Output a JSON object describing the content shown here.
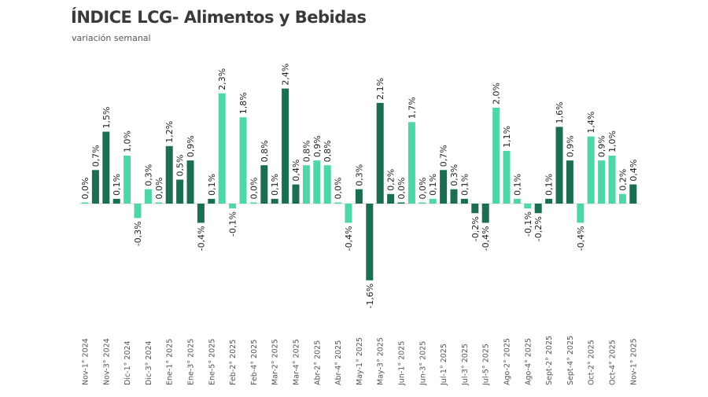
{
  "chart_data": {
    "type": "bar",
    "title": "ÍNDICE LCG- Alimentos y Bebidas",
    "subtitle": "variación semanal",
    "xlabel": "",
    "ylabel": "",
    "ylim": [
      -1.6,
      2.4
    ],
    "grid": false,
    "legend": "none",
    "unit": "%",
    "colors": {
      "dark": "#1b6e52",
      "light": "#4fd6a8"
    },
    "categories": [
      "Nov-1° 2024",
      "",
      "Nov-3° 2024",
      "",
      "Dic-1° 2024",
      "",
      "Dic-3° 2024",
      "",
      "Ene-1° 2025",
      "",
      "Ene-3° 2025",
      "",
      "Ene-5° 2025",
      "",
      "Feb-2° 2025",
      "",
      "Feb-4° 2025",
      "",
      "Mar-2° 2025",
      "",
      "Mar-4° 2025",
      "",
      "Abr-2° 2025",
      "",
      "Abr-4° 2025",
      "",
      "May-1° 2025",
      "",
      "May-3° 2025",
      "",
      "Jun-1° 2025",
      "",
      "Jun-3° 2025",
      "",
      "Jul-1° 2025",
      "",
      "Jul-3° 2025",
      "",
      "Jul-5° 2025",
      "",
      "Ago-2° 2025",
      "",
      "Ago-4° 2025",
      "",
      "Sept-2° 2025",
      "",
      "Sept-4° 2025",
      "",
      "Oct-2° 2025",
      "",
      "Oct-4° 2025",
      "",
      "Nov-1° 2025"
    ],
    "values": [
      0.0,
      0.7,
      1.5,
      0.1,
      1.0,
      -0.3,
      0.3,
      0.0,
      1.2,
      0.5,
      0.9,
      -0.4,
      0.1,
      2.3,
      -0.1,
      1.8,
      0.0,
      0.8,
      0.1,
      2.4,
      0.4,
      0.8,
      0.9,
      0.8,
      0.0,
      -0.4,
      0.3,
      -1.6,
      2.1,
      0.2,
      0.0,
      1.7,
      0.0,
      0.1,
      0.7,
      0.3,
      0.1,
      -0.2,
      -0.4,
      2.0,
      1.1,
      0.1,
      -0.1,
      -0.2,
      0.1,
      1.6,
      0.9,
      -0.4,
      1.4,
      0.9,
      1.0,
      0.2,
      0.4
    ],
    "data_labels": [
      "0,0%",
      "0,7%",
      "1,5%",
      "0,1%",
      "1,0%",
      "-0,3%",
      "0,3%",
      "0,0%",
      "1,2%",
      "0,5%",
      "0,9%",
      "-0,4%",
      "0,1%",
      "2,3%",
      "-0,1%",
      "1,8%",
      "0,0%",
      "0,8%",
      "0,1%",
      "2,4%",
      "0,4%",
      "0,8%",
      "0,9%",
      "0,8%",
      "0,0%",
      "-0,4%",
      "0,3%",
      "-1,6%",
      "2,1%",
      "0,2%",
      "0,0%",
      "1,7%",
      "0,0%",
      "0,1%",
      "0,7%",
      "0,3%",
      "0,1%",
      "-0,2%",
      "-0,4%",
      "2,0%",
      "1,1%",
      "0,1%",
      "-0,1%",
      "-0,2%",
      "0,1%",
      "1,6%",
      "0,9%",
      "-0,4%",
      "1,4%",
      "0,9%",
      "1,0%",
      "0,2%",
      "0,4%"
    ],
    "bar_colors": [
      "light",
      "dark",
      "dark",
      "dark",
      "light",
      "light",
      "light",
      "light",
      "dark",
      "dark",
      "dark",
      "dark",
      "dark",
      "light",
      "light",
      "light",
      "light",
      "dark",
      "dark",
      "dark",
      "dark",
      "light",
      "light",
      "light",
      "light",
      "light",
      "dark",
      "dark",
      "dark",
      "dark",
      "dark",
      "light",
      "light",
      "light",
      "dark",
      "dark",
      "dark",
      "dark",
      "dark",
      "light",
      "light",
      "light",
      "light",
      "dark",
      "dark",
      "dark",
      "dark",
      "light",
      "light",
      "light",
      "light",
      "light",
      "dark"
    ]
  }
}
